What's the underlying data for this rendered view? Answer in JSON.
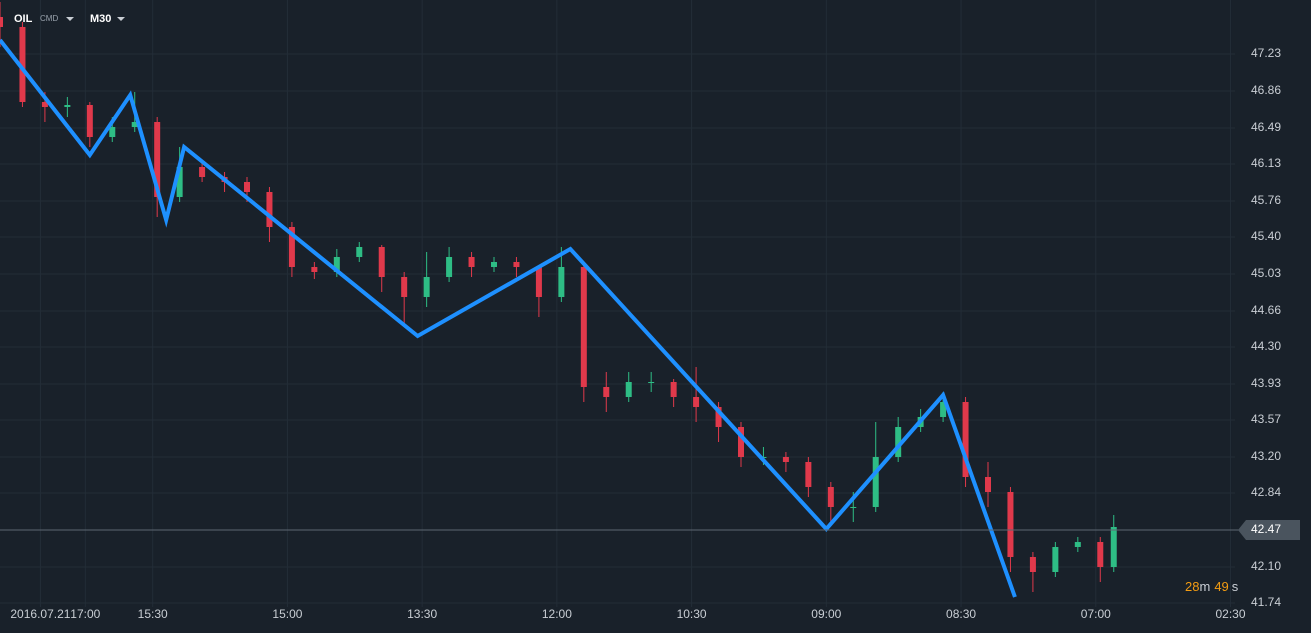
{
  "header": {
    "symbol": "OIL",
    "kind": "CMD",
    "timeframe": "M30"
  },
  "chart_data": {
    "type": "candlestick",
    "xlim": [
      0,
      275
    ],
    "xticks": [
      {
        "value": 9,
        "label": "2016.07.21"
      },
      {
        "value": 19,
        "label": "17:00"
      },
      {
        "value": 34,
        "label": "15:30"
      },
      {
        "value": 64,
        "label": "15:00"
      },
      {
        "value": 94,
        "label": "13:30"
      },
      {
        "value": 124,
        "label": "12:00"
      },
      {
        "value": 154,
        "label": "10:30"
      },
      {
        "value": 184,
        "label": "09:00"
      },
      {
        "value": 214,
        "label": "08:30"
      },
      {
        "value": 244,
        "label": "07:00"
      },
      {
        "value": 274,
        "label": "02:30"
      }
    ],
    "ylim": [
      41.7,
      47.77
    ],
    "yticks": [
      47.23,
      46.86,
      46.49,
      46.13,
      45.76,
      {
        "value": 45.4,
        "label": "45.40"
      },
      45.03,
      44.66,
      {
        "value": 44.3,
        "label": "44.30"
      },
      43.93,
      43.57,
      {
        "value": 43.2,
        "label": "43.20"
      },
      42.84,
      {
        "value": 42.1,
        "label": "42.10"
      },
      41.74
    ],
    "grid": true,
    "up_color": "#2ebd85",
    "down_color": "#e0394b",
    "candles": {
      "x": [
        0,
        5,
        10,
        15,
        20,
        25,
        30,
        35,
        40,
        45,
        50,
        55,
        60,
        65,
        70,
        75,
        80,
        85,
        90,
        95,
        100,
        105,
        110,
        115,
        120,
        125,
        130,
        135,
        140,
        145,
        150,
        155,
        160,
        165,
        170,
        175,
        180,
        185,
        190,
        195,
        200,
        205,
        210,
        215,
        220,
        225,
        230,
        235,
        240,
        245,
        248
      ],
      "open": [
        47.6,
        47.5,
        46.75,
        46.7,
        46.72,
        46.4,
        46.5,
        46.55,
        45.8,
        46.1,
        46.0,
        45.95,
        45.85,
        45.5,
        45.1,
        45.05,
        45.2,
        45.3,
        45.0,
        44.8,
        45.0,
        45.2,
        45.1,
        45.15,
        45.1,
        44.8,
        45.1,
        43.9,
        43.8,
        43.95,
        43.95,
        43.8,
        43.7,
        43.5,
        43.2,
        43.2,
        43.15,
        42.9,
        42.7,
        42.7,
        43.2,
        43.5,
        43.6,
        43.75,
        43.0,
        42.85,
        42.2,
        42.05,
        42.3,
        42.35,
        42.1
      ],
      "high": [
        47.75,
        47.55,
        46.85,
        46.8,
        46.75,
        46.6,
        46.85,
        46.6,
        46.3,
        46.15,
        46.05,
        46.0,
        45.9,
        45.55,
        45.15,
        45.28,
        45.35,
        45.32,
        45.05,
        45.25,
        45.3,
        45.25,
        45.2,
        45.2,
        45.12,
        45.3,
        45.15,
        44.05,
        44.05,
        44.05,
        43.98,
        44.1,
        43.75,
        43.55,
        43.3,
        43.25,
        43.2,
        42.95,
        42.85,
        43.55,
        43.6,
        43.68,
        43.85,
        43.8,
        43.15,
        42.9,
        42.25,
        42.35,
        42.4,
        42.4,
        42.62
      ],
      "low": [
        47.3,
        46.7,
        46.55,
        46.6,
        46.3,
        46.35,
        46.45,
        45.6,
        45.75,
        45.95,
        45.85,
        45.75,
        45.35,
        45.0,
        44.98,
        45.0,
        45.15,
        44.85,
        44.5,
        44.7,
        44.95,
        45.0,
        45.05,
        45.0,
        44.6,
        44.75,
        43.75,
        43.65,
        43.75,
        43.85,
        43.7,
        43.55,
        43.35,
        43.1,
        43.12,
        43.05,
        42.8,
        42.55,
        42.55,
        42.65,
        43.15,
        43.45,
        43.55,
        42.9,
        42.7,
        42.05,
        41.85,
        42.0,
        42.25,
        41.95,
        42.05
      ],
      "close": [
        47.5,
        46.75,
        46.7,
        46.72,
        46.4,
        46.5,
        46.55,
        45.8,
        46.1,
        46.0,
        45.95,
        45.85,
        45.5,
        45.1,
        45.05,
        45.2,
        45.3,
        45.0,
        44.8,
        45.0,
        45.2,
        45.1,
        45.15,
        45.1,
        44.8,
        45.1,
        43.9,
        43.8,
        43.95,
        43.95,
        43.8,
        43.7,
        43.5,
        43.2,
        43.2,
        43.15,
        42.9,
        42.7,
        42.7,
        43.2,
        43.5,
        43.6,
        43.75,
        43.0,
        42.85,
        42.2,
        42.05,
        42.3,
        42.35,
        42.1,
        42.5
      ]
    },
    "zigzag": {
      "color": "#1e90ff",
      "x": [
        0,
        20,
        29,
        37,
        41,
        93,
        127,
        184,
        210,
        226
      ],
      "values": [
        47.37,
        46.22,
        46.82,
        45.57,
        46.3,
        44.41,
        45.28,
        42.48,
        43.82,
        41.8
      ]
    },
    "last_price": 42.47,
    "timer": {
      "minutes": 28,
      "minutes_unit": "m",
      "seconds": 49,
      "seconds_unit": "s"
    }
  }
}
